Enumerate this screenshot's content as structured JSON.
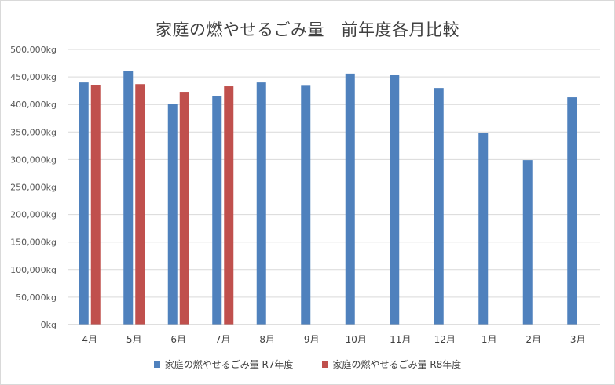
{
  "chart_data": {
    "type": "bar",
    "title": "家庭の燃やせるごみ量　前年度各月比較",
    "categories": [
      "4月",
      "5月",
      "6月",
      "7月",
      "8月",
      "9月",
      "10月",
      "11月",
      "12月",
      "1月",
      "2月",
      "3月"
    ],
    "series": [
      {
        "name": "家庭の燃やせるごみ量 R7年度",
        "color": "#4f81bd",
        "values": [
          440000,
          461000,
          401000,
          415000,
          440000,
          434000,
          456000,
          453000,
          430000,
          348000,
          299000,
          413000
        ]
      },
      {
        "name": "家庭の燃やせるごみ量 R8年度",
        "color": "#c0504d",
        "values": [
          435000,
          437000,
          423000,
          433000,
          null,
          null,
          null,
          null,
          null,
          null,
          null,
          null
        ]
      }
    ],
    "ylim": [
      0,
      500000
    ],
    "yticks": [
      0,
      50000,
      100000,
      150000,
      200000,
      250000,
      300000,
      350000,
      400000,
      450000,
      500000
    ],
    "ytick_labels": [
      "0kg",
      "50,000kg",
      "100,000kg",
      "150,000kg",
      "200,000kg",
      "250,000kg",
      "300,000kg",
      "350,000kg",
      "400,000kg",
      "450,000kg",
      "500,000kg"
    ],
    "grid": true,
    "legend_position": "bottom"
  }
}
